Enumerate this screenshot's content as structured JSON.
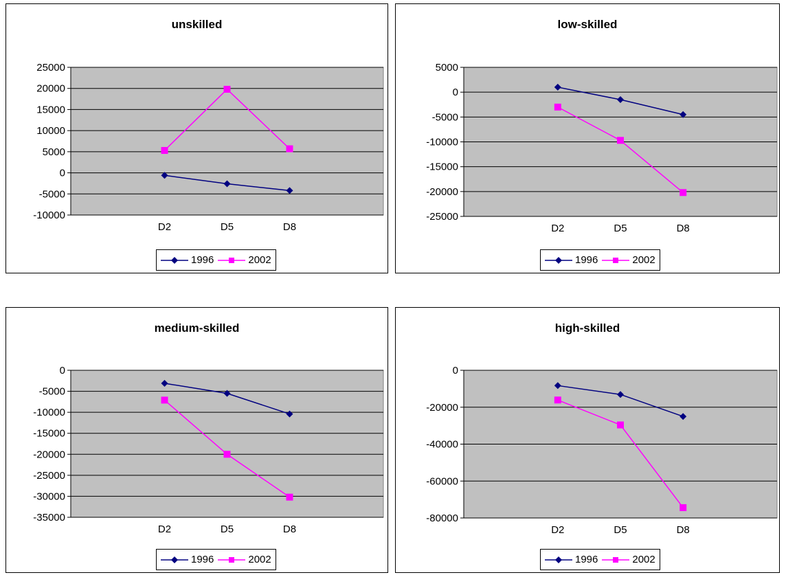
{
  "chart_data": [
    {
      "type": "line",
      "title": "unskilled",
      "categories": [
        "D2",
        "D5",
        "D8"
      ],
      "yticks": [
        25000,
        20000,
        15000,
        10000,
        5000,
        0,
        -5000,
        -10000
      ],
      "ylim": [
        -10000,
        25000
      ],
      "grid": true,
      "legend": "bottom",
      "series": [
        {
          "name": "1996",
          "color": "#000080",
          "marker": "diamond",
          "values": [
            -600,
            -2600,
            -4200
          ]
        },
        {
          "name": "2002",
          "color": "#ff00ff",
          "marker": "square",
          "values": [
            5300,
            19800,
            5700
          ]
        }
      ]
    },
    {
      "type": "line",
      "title": "low-skilled",
      "categories": [
        "D2",
        "D5",
        "D8"
      ],
      "yticks": [
        5000,
        0,
        -5000,
        -10000,
        -15000,
        -20000,
        -25000
      ],
      "ylim": [
        -25000,
        5000
      ],
      "grid": true,
      "legend": "bottom",
      "series": [
        {
          "name": "1996",
          "color": "#000080",
          "marker": "diamond",
          "values": [
            1000,
            -1500,
            -4500
          ]
        },
        {
          "name": "2002",
          "color": "#ff00ff",
          "marker": "square",
          "values": [
            -3000,
            -9700,
            -20200
          ]
        }
      ]
    },
    {
      "type": "line",
      "title": "medium-skilled",
      "categories": [
        "D2",
        "D5",
        "D8"
      ],
      "yticks": [
        0,
        -5000,
        -10000,
        -15000,
        -20000,
        -25000,
        -30000,
        -35000
      ],
      "ylim": [
        -35000,
        0
      ],
      "grid": true,
      "legend": "bottom",
      "series": [
        {
          "name": "1996",
          "color": "#000080",
          "marker": "diamond",
          "values": [
            -3100,
            -5500,
            -10400
          ]
        },
        {
          "name": "2002",
          "color": "#ff00ff",
          "marker": "square",
          "values": [
            -7100,
            -20000,
            -30200
          ]
        }
      ]
    },
    {
      "type": "line",
      "title": "high-skilled",
      "categories": [
        "D2",
        "D5",
        "D8"
      ],
      "yticks": [
        0,
        -20000,
        -40000,
        -60000,
        -80000
      ],
      "ylim": [
        -80000,
        0
      ],
      "grid": true,
      "legend": "bottom",
      "series": [
        {
          "name": "1996",
          "color": "#000080",
          "marker": "diamond",
          "values": [
            -8300,
            -13100,
            -25000
          ]
        },
        {
          "name": "2002",
          "color": "#ff00ff",
          "marker": "square",
          "values": [
            -16100,
            -29600,
            -74400
          ]
        }
      ]
    }
  ]
}
